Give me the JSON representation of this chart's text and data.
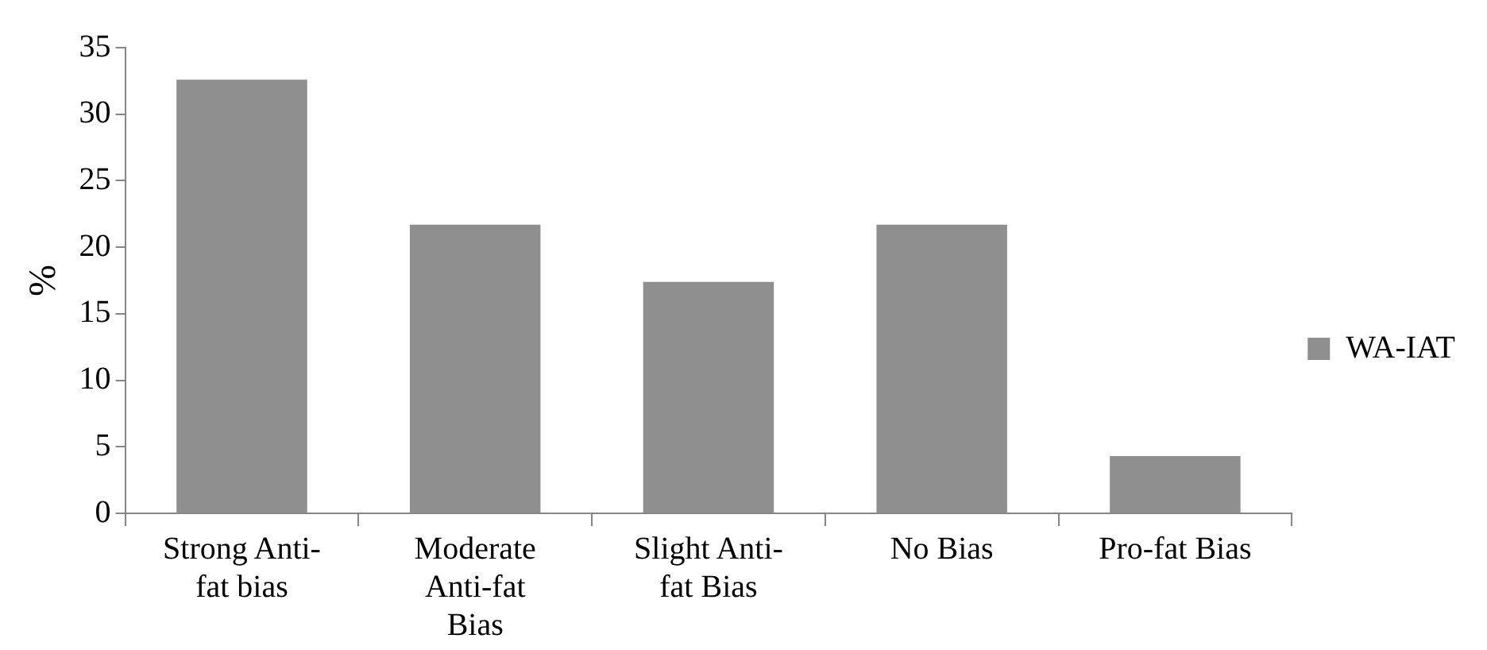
{
  "chart_data": {
    "type": "bar",
    "ylabel": "%",
    "categories": [
      "Strong Anti-fat bias",
      "Moderate Anti-fat Bias",
      "Slight Anti-fat Bias",
      "No Bias",
      "Pro-fat Bias"
    ],
    "series": [
      {
        "name": "WA-IAT",
        "color": "#8f8f8f",
        "values": [
          32.6,
          21.7,
          17.4,
          21.7,
          4.3
        ]
      }
    ],
    "ylim": [
      0,
      35
    ],
    "yticks": [
      0,
      5,
      10,
      15,
      20,
      25,
      30,
      35
    ],
    "grid": false,
    "legend": "right"
  }
}
